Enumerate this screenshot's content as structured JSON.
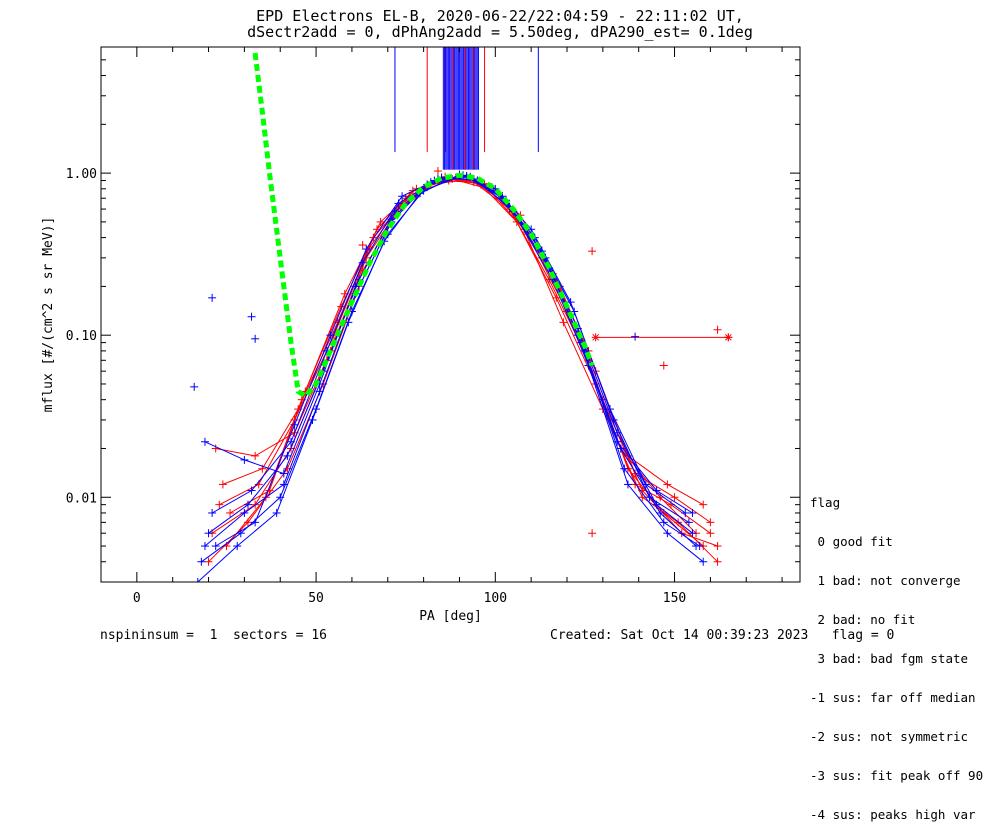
{
  "chart_data": {
    "type": "line",
    "title": "EPD Electrons EL-B, 2020-06-22/22:04:59 - 22:11:02 UT,",
    "subtitle": "dSectr2add = 0, dPhAng2add = 5.50deg, dPA290_est=   0.1deg",
    "xlabel": "PA [deg]",
    "ylabel": "mflux [#/(cm^2 s sr MeV)]",
    "xlim": [
      -10,
      185
    ],
    "ylim": [
      0.003,
      6
    ],
    "yscale": "log",
    "xticks": [
      0,
      50,
      100,
      150
    ],
    "xticklabels": [
      "0",
      "50",
      "100",
      "150"
    ],
    "yticks": [
      0.01,
      0.1,
      1.0
    ],
    "yticklabels": [
      "0.01",
      "0.10",
      "1.00"
    ],
    "colors": {
      "red_series": "#ff0000",
      "blue_series": "#0000ff",
      "fit": "#00ff00"
    },
    "fit_curve": {
      "x": [
        33,
        35,
        37,
        39,
        41,
        43,
        45,
        47,
        50,
        55,
        60,
        65,
        70,
        75,
        80,
        85,
        90,
        95,
        100,
        105,
        110,
        115,
        120,
        125,
        127
      ],
      "y": [
        5.5,
        2.4,
        1.0,
        0.45,
        0.2,
        0.09,
        0.045,
        0.042,
        0.05,
        0.09,
        0.16,
        0.28,
        0.45,
        0.65,
        0.82,
        0.93,
        0.97,
        0.93,
        0.8,
        0.6,
        0.42,
        0.26,
        0.15,
        0.085,
        0.065
      ]
    },
    "series": [
      {
        "color": "red",
        "x": [
          21,
          33,
          43,
          53,
          63,
          73,
          84,
          94,
          104,
          115,
          126,
          137,
          147,
          158
        ],
        "y": [
          0.006,
          0.009,
          0.02,
          0.07,
          0.25,
          0.6,
          0.9,
          0.88,
          0.6,
          0.22,
          0.07,
          0.015,
          0.008,
          0.005
        ]
      },
      {
        "color": "red",
        "x": [
          23,
          34,
          44,
          55,
          65,
          75,
          86,
          96,
          106,
          117,
          128,
          139,
          149,
          160
        ],
        "y": [
          0.009,
          0.012,
          0.03,
          0.1,
          0.35,
          0.7,
          0.95,
          0.85,
          0.5,
          0.17,
          0.05,
          0.012,
          0.009,
          0.006
        ]
      },
      {
        "color": "red",
        "x": [
          25,
          36,
          46,
          57,
          67,
          77,
          88,
          98,
          108,
          119,
          130,
          141,
          151,
          162
        ],
        "y": [
          0.005,
          0.01,
          0.04,
          0.15,
          0.45,
          0.78,
          0.92,
          0.8,
          0.45,
          0.12,
          0.035,
          0.01,
          0.007,
          0.004
        ]
      },
      {
        "color": "red",
        "x": [
          20,
          31,
          42,
          52,
          62,
          72,
          82,
          93,
          103,
          113,
          124,
          135,
          146,
          156
        ],
        "y": [
          0.004,
          0.007,
          0.015,
          0.05,
          0.2,
          0.55,
          0.85,
          0.92,
          0.65,
          0.3,
          0.09,
          0.02,
          0.01,
          0.006
        ]
      },
      {
        "color": "red",
        "x": [
          24,
          35,
          45,
          56,
          66,
          76,
          87,
          97,
          107,
          118,
          128,
          139,
          150,
          160
        ],
        "y": [
          0.012,
          0.015,
          0.035,
          0.12,
          0.4,
          0.72,
          0.9,
          0.86,
          0.55,
          0.2,
          0.06,
          0.014,
          0.01,
          0.007
        ]
      },
      {
        "color": "red",
        "x": [
          22,
          33,
          44,
          54,
          64,
          74,
          85,
          95,
          105,
          116,
          126,
          137,
          148,
          158
        ],
        "y": [
          0.02,
          0.018,
          0.025,
          0.08,
          0.3,
          0.65,
          0.93,
          0.9,
          0.58,
          0.24,
          0.08,
          0.018,
          0.012,
          0.009
        ]
      },
      {
        "color": "red",
        "x": [
          26,
          37,
          47,
          58,
          68,
          78,
          89,
          99,
          109,
          120,
          130,
          141,
          152,
          162
        ],
        "y": [
          0.008,
          0.011,
          0.045,
          0.18,
          0.5,
          0.8,
          0.94,
          0.82,
          0.42,
          0.14,
          0.04,
          0.011,
          0.006,
          0.005
        ]
      },
      {
        "color": "blue",
        "x": [
          19,
          30,
          41,
          51,
          61,
          71,
          81,
          92,
          102,
          112,
          123,
          134,
          145,
          155
        ],
        "y": [
          0.005,
          0.008,
          0.012,
          0.045,
          0.18,
          0.5,
          0.85,
          0.95,
          0.7,
          0.35,
          0.11,
          0.025,
          0.009,
          0.006
        ]
      },
      {
        "color": "blue",
        "x": [
          20,
          31,
          42,
          52,
          62,
          72,
          83,
          93,
          103,
          114,
          124,
          135,
          146,
          156
        ],
        "y": [
          0.006,
          0.009,
          0.018,
          0.06,
          0.22,
          0.58,
          0.9,
          0.95,
          0.68,
          0.3,
          0.09,
          0.02,
          0.008,
          0.005
        ]
      },
      {
        "color": "blue",
        "x": [
          18,
          29,
          40,
          50,
          60,
          70,
          80,
          91,
          101,
          111,
          122,
          133,
          143,
          154
        ],
        "y": [
          0.004,
          0.006,
          0.01,
          0.035,
          0.14,
          0.42,
          0.78,
          0.97,
          0.75,
          0.4,
          0.14,
          0.03,
          0.01,
          0.007
        ]
      },
      {
        "color": "blue",
        "x": [
          21,
          32,
          43,
          53,
          63,
          73,
          84,
          94,
          104,
          115,
          125,
          136,
          147,
          157
        ],
        "y": [
          0.008,
          0.011,
          0.022,
          0.08,
          0.28,
          0.65,
          0.92,
          0.92,
          0.62,
          0.26,
          0.08,
          0.015,
          0.007,
          0.005
        ]
      },
      {
        "color": "blue",
        "x": [
          19,
          30,
          41,
          51,
          61,
          71,
          82,
          92,
          102,
          113,
          123,
          134,
          145,
          155
        ],
        "y": [
          0.022,
          0.017,
          0.014,
          0.05,
          0.2,
          0.52,
          0.88,
          0.96,
          0.72,
          0.33,
          0.1,
          0.022,
          0.011,
          0.008
        ]
      },
      {
        "color": "blue",
        "x": [
          22,
          33,
          44,
          54,
          64,
          74,
          85,
          95,
          105,
          116,
          126,
          137,
          148,
          158
        ],
        "y": [
          0.005,
          0.007,
          0.028,
          0.1,
          0.34,
          0.72,
          0.94,
          0.9,
          0.58,
          0.22,
          0.065,
          0.012,
          0.006,
          0.004
        ]
      },
      {
        "color": "blue",
        "x": [
          17,
          28,
          39,
          49,
          59,
          69,
          79,
          90,
          100,
          110,
          121,
          132,
          142,
          153
        ],
        "y": [
          0.003,
          0.005,
          0.008,
          0.03,
          0.12,
          0.38,
          0.75,
          0.98,
          0.8,
          0.45,
          0.16,
          0.035,
          0.012,
          0.008
        ]
      }
    ],
    "outlier_points": [
      {
        "color": "blue",
        "x": 16,
        "y": 0.048
      },
      {
        "color": "blue",
        "x": 21,
        "y": 0.17
      },
      {
        "color": "blue",
        "x": 32,
        "y": 0.13
      },
      {
        "color": "blue",
        "x": 33,
        "y": 0.095
      },
      {
        "color": "blue",
        "x": 139,
        "y": 0.098
      },
      {
        "color": "red",
        "x": 63,
        "y": 0.36
      },
      {
        "color": "red",
        "x": 127,
        "y": 0.33
      },
      {
        "color": "red",
        "x": 147,
        "y": 0.065
      },
      {
        "color": "red",
        "x": 162,
        "y": 0.108
      },
      {
        "color": "red",
        "x": 165,
        "y": 0.097
      },
      {
        "color": "red",
        "x": 84,
        "y": 1.03
      },
      {
        "color": "red",
        "x": 127,
        "y": 0.006
      }
    ],
    "hline": {
      "color": "red",
      "x": [
        128,
        165
      ],
      "y": 0.097
    },
    "legend": {
      "title": "flag",
      "entries": [
        " 0 good fit",
        " 1 bad: not converge",
        " 2 bad: no fit",
        " 3 bad: bad fgm state",
        "-1 sus: far off median",
        "-2 sus: not symmetric",
        "-3 sus: fit peak off 90",
        "-4 sus: peaks high var"
      ]
    }
  },
  "footer": {
    "left": "nspininsum =  1  sectors = 16",
    "right": "Created: Sat Oct 14 00:39:23 2023   flag = 0"
  }
}
